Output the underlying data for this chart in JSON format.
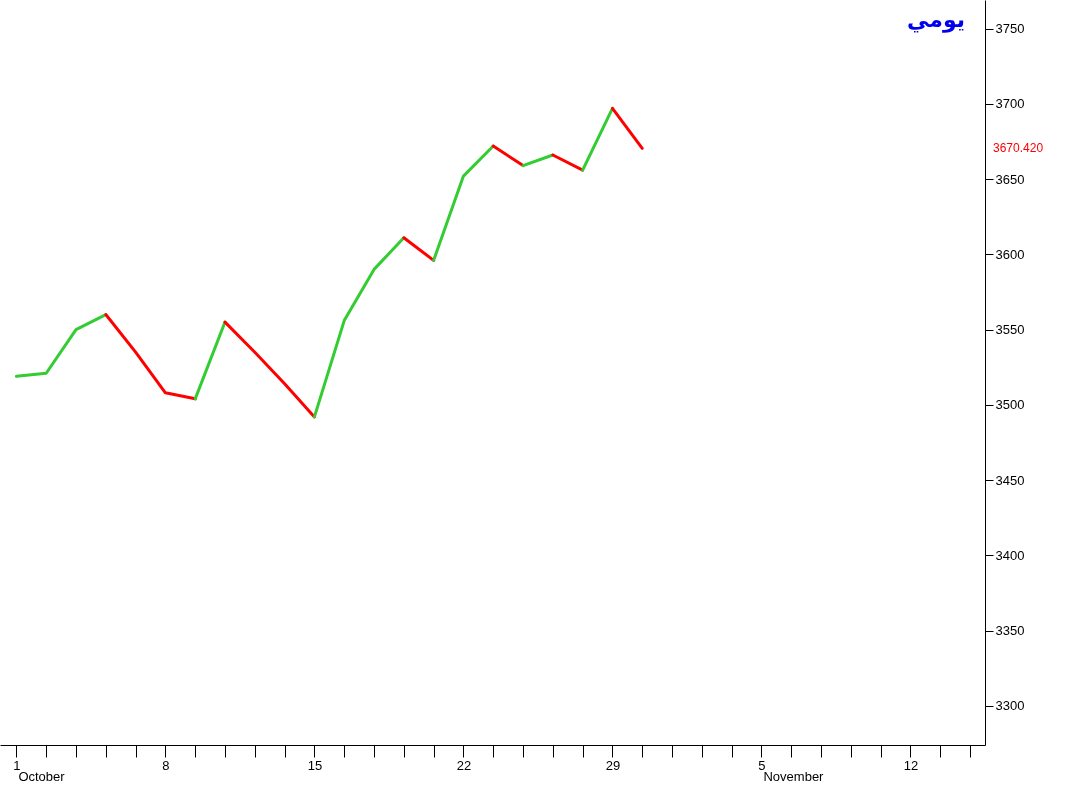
{
  "chart_data": {
    "type": "line",
    "title": "يومي",
    "categories": [
      "1",
      null,
      null,
      null,
      null,
      "8",
      null,
      null,
      null,
      null,
      "15",
      null,
      null,
      null,
      null,
      "22",
      null,
      null,
      null,
      null,
      "29",
      null,
      null,
      null,
      null,
      "5",
      null,
      null,
      null,
      null,
      "12",
      null,
      null
    ],
    "series": [
      {
        "color": "#33cc33",
        "values": [
          3519,
          3521,
          3550,
          3560,
          null,
          null,
          null,
          null,
          null,
          null,
          null,
          null,
          null,
          null,
          null,
          null,
          null,
          null,
          null,
          null,
          null,
          null,
          null,
          null,
          null,
          null,
          null,
          null,
          null,
          null,
          null,
          null,
          null
        ]
      },
      {
        "color": "#ff0000",
        "values": [
          null,
          null,
          null,
          3560,
          3535,
          3508,
          3504,
          null,
          null,
          null,
          null,
          null,
          null,
          null,
          null,
          null,
          null,
          null,
          null,
          null,
          null,
          null,
          null,
          null,
          null,
          null,
          null,
          null,
          null,
          null,
          null,
          null,
          null
        ]
      },
      {
        "color": "#33cc33",
        "values": [
          null,
          null,
          null,
          null,
          null,
          null,
          3504,
          3555,
          null,
          null,
          null,
          null,
          null,
          null,
          null,
          null,
          null,
          null,
          null,
          null,
          null,
          null,
          null,
          null,
          null,
          null,
          null,
          null,
          null,
          null,
          null,
          null,
          null
        ]
      },
      {
        "color": "#ff0000",
        "values": [
          null,
          null,
          null,
          null,
          null,
          null,
          null,
          3555,
          3535,
          3514,
          3492,
          null,
          null,
          null,
          null,
          null,
          null,
          null,
          null,
          null,
          null,
          null,
          null,
          null,
          null,
          null,
          null,
          null,
          null,
          null,
          null,
          null,
          null
        ]
      },
      {
        "color": "#33cc33",
        "values": [
          null,
          null,
          null,
          null,
          null,
          null,
          null,
          null,
          null,
          null,
          3492,
          3556,
          3590,
          3611,
          null,
          null,
          null,
          null,
          null,
          null,
          null,
          null,
          null,
          null,
          null,
          null,
          null,
          null,
          null,
          null,
          null,
          null,
          null
        ]
      },
      {
        "color": "#ff0000",
        "values": [
          null,
          null,
          null,
          null,
          null,
          null,
          null,
          null,
          null,
          null,
          null,
          null,
          null,
          3611,
          3596,
          null,
          null,
          null,
          null,
          null,
          null,
          null,
          null,
          null,
          null,
          null,
          null,
          null,
          null,
          null,
          null,
          null,
          null
        ]
      },
      {
        "color": "#33cc33",
        "values": [
          null,
          null,
          null,
          null,
          null,
          null,
          null,
          null,
          null,
          null,
          null,
          null,
          null,
          null,
          3596,
          3652,
          3672,
          null,
          null,
          null,
          null,
          null,
          null,
          null,
          null,
          null,
          null,
          null,
          null,
          null,
          null,
          null,
          null
        ]
      },
      {
        "color": "#ff0000",
        "values": [
          null,
          null,
          null,
          null,
          null,
          null,
          null,
          null,
          null,
          null,
          null,
          null,
          null,
          null,
          null,
          null,
          3672,
          3659,
          null,
          null,
          null,
          null,
          null,
          null,
          null,
          null,
          null,
          null,
          null,
          null,
          null,
          null,
          null
        ]
      },
      {
        "color": "#33cc33",
        "values": [
          null,
          null,
          null,
          null,
          null,
          null,
          null,
          null,
          null,
          null,
          null,
          null,
          null,
          null,
          null,
          null,
          null,
          3659,
          3666,
          null,
          null,
          null,
          null,
          null,
          null,
          null,
          null,
          null,
          null,
          null,
          null,
          null,
          null
        ]
      },
      {
        "color": "#ff0000",
        "values": [
          null,
          null,
          null,
          null,
          null,
          null,
          null,
          null,
          null,
          null,
          null,
          null,
          null,
          null,
          null,
          null,
          null,
          null,
          3666,
          3656,
          null,
          null,
          null,
          null,
          null,
          null,
          null,
          null,
          null,
          null,
          null,
          null,
          null
        ]
      },
      {
        "color": "#33cc33",
        "values": [
          null,
          null,
          null,
          null,
          null,
          null,
          null,
          null,
          null,
          null,
          null,
          null,
          null,
          null,
          null,
          null,
          null,
          null,
          null,
          3656,
          3697,
          null,
          null,
          null,
          null,
          null,
          null,
          null,
          null,
          null,
          null,
          null,
          null
        ]
      },
      {
        "color": "#ff0000",
        "values": [
          null,
          null,
          null,
          null,
          null,
          null,
          null,
          null,
          null,
          null,
          null,
          null,
          null,
          null,
          null,
          null,
          null,
          null,
          null,
          null,
          3697,
          3670.42,
          null,
          null,
          null,
          null,
          null,
          null,
          null,
          null,
          null,
          null,
          null
        ]
      }
    ],
    "ylim": [
      3274,
      3769
    ],
    "yticks": [
      3300,
      3350,
      3400,
      3450,
      3500,
      3550,
      3600,
      3650,
      3700,
      3750
    ],
    "grid": false,
    "marker": "none",
    "annotations": [
      "October",
      "November",
      "3670.420"
    ]
  }
}
